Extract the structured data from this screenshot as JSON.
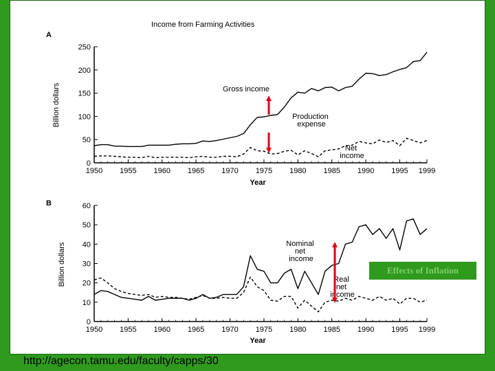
{
  "footer_url": "http://agecon.tamu.edu/faculty/capps/30",
  "callout": "Effects of Inflation",
  "colors": {
    "background": "#2f9a1e",
    "arrow": "#e0001a",
    "callout_bg": "#2f9a1e",
    "callout_text": "#7fd06c"
  },
  "chart_data": [
    {
      "panel": "A",
      "type": "line",
      "title": "Income from Farming Activities",
      "xlabel": "Year",
      "ylabel": "Billion dollars",
      "xlim": [
        1950,
        1999
      ],
      "ylim": [
        0,
        250
      ],
      "xticks": [
        "1950",
        "1955",
        "1960",
        "1965",
        "1970",
        "1975",
        "1980",
        "1985",
        "1990",
        "1995",
        "1999"
      ],
      "yticks": [
        "0",
        "50",
        "100",
        "150",
        "200",
        "250"
      ],
      "grid": false,
      "annotations": [
        "Gross income",
        "Production\nexpense",
        "Net\nincome"
      ],
      "series": [
        {
          "name": "Gross income",
          "style": "solid",
          "x": [
            1950,
            1951,
            1952,
            1953,
            1954,
            1955,
            1956,
            1957,
            1958,
            1959,
            1960,
            1961,
            1962,
            1963,
            1964,
            1965,
            1966,
            1967,
            1968,
            1969,
            1970,
            1971,
            1972,
            1973,
            1974,
            1975,
            1976,
            1977,
            1978,
            1979,
            1980,
            1981,
            1982,
            1983,
            1984,
            1985,
            1986,
            1987,
            1988,
            1989,
            1990,
            1991,
            1992,
            1993,
            1994,
            1995,
            1996,
            1997,
            1998,
            1999
          ],
          "y": [
            37,
            39,
            39,
            36,
            36,
            35,
            35,
            35,
            38,
            38,
            38,
            38,
            40,
            41,
            41,
            42,
            47,
            46,
            48,
            51,
            54,
            57,
            63,
            82,
            98,
            99,
            102,
            104,
            120,
            140,
            152,
            150,
            160,
            155,
            162,
            163,
            155,
            162,
            165,
            180,
            193,
            192,
            188,
            190,
            196,
            201,
            205,
            218,
            220,
            238
          ]
        },
        {
          "name": "Net income",
          "style": "dashed",
          "x": [
            1950,
            1951,
            1952,
            1953,
            1954,
            1955,
            1956,
            1957,
            1958,
            1959,
            1960,
            1961,
            1962,
            1963,
            1964,
            1965,
            1966,
            1967,
            1968,
            1969,
            1970,
            1971,
            1972,
            1973,
            1974,
            1975,
            1976,
            1977,
            1978,
            1979,
            1980,
            1981,
            1982,
            1983,
            1984,
            1985,
            1986,
            1987,
            1988,
            1989,
            1990,
            1991,
            1992,
            1993,
            1994,
            1995,
            1996,
            1997,
            1998,
            1999
          ],
          "y": [
            14,
            15,
            15,
            14,
            13,
            12,
            12,
            11,
            14,
            11,
            12,
            12,
            12,
            12,
            11,
            13,
            14,
            12,
            12,
            14,
            14,
            13,
            19,
            33,
            26,
            25,
            19,
            20,
            25,
            27,
            17,
            26,
            20,
            13,
            26,
            28,
            30,
            37,
            38,
            46,
            43,
            41,
            49,
            44,
            48,
            37,
            53,
            48,
            43,
            48
          ]
        }
      ]
    },
    {
      "panel": "B",
      "type": "line",
      "xlabel": "Year",
      "ylabel": "Billion dollars",
      "xlim": [
        1950,
        1999
      ],
      "ylim": [
        0,
        60
      ],
      "xticks": [
        "1950",
        "1955",
        "1960",
        "1965",
        "1970",
        "1975",
        "1980",
        "1985",
        "1990",
        "1995",
        "1999"
      ],
      "yticks": [
        "0",
        "10",
        "20",
        "30",
        "40",
        "50",
        "60"
      ],
      "grid": false,
      "annotations": [
        "Nominal\nnet\nincome",
        "Real\nnet\nincome"
      ],
      "series": [
        {
          "name": "Nominal net income",
          "style": "solid",
          "x": [
            1950,
            1951,
            1952,
            1953,
            1954,
            1955,
            1956,
            1957,
            1958,
            1959,
            1960,
            1961,
            1962,
            1963,
            1964,
            1965,
            1966,
            1967,
            1968,
            1969,
            1970,
            1971,
            1972,
            1973,
            1974,
            1975,
            1976,
            1977,
            1978,
            1979,
            1980,
            1981,
            1982,
            1983,
            1984,
            1985,
            1986,
            1987,
            1988,
            1989,
            1990,
            1991,
            1992,
            1993,
            1994,
            1995,
            1996,
            1997,
            1998,
            1999
          ],
          "y": [
            14,
            16,
            15.5,
            14,
            12.5,
            12,
            11.5,
            11,
            13,
            11,
            11.5,
            12,
            12,
            12,
            11,
            12,
            14,
            12,
            12.5,
            14,
            14,
            14,
            18,
            34,
            27,
            26,
            20,
            20,
            25,
            27,
            17,
            26,
            20,
            14,
            26,
            29,
            30,
            40,
            41,
            49,
            50,
            45,
            48,
            43,
            48,
            37,
            52,
            53,
            45,
            48
          ]
        },
        {
          "name": "Real net income",
          "style": "dashed",
          "x": [
            1950,
            1951,
            1952,
            1953,
            1954,
            1955,
            1956,
            1957,
            1958,
            1959,
            1960,
            1961,
            1962,
            1963,
            1964,
            1965,
            1966,
            1967,
            1968,
            1969,
            1970,
            1971,
            1972,
            1973,
            1974,
            1975,
            1976,
            1977,
            1978,
            1979,
            1980,
            1981,
            1982,
            1983,
            1984,
            1985,
            1986,
            1987,
            1988,
            1989,
            1990,
            1991,
            1992,
            1993,
            1994,
            1995,
            1996,
            1997,
            1998,
            1999
          ],
          "y": [
            21.5,
            22.5,
            20,
            17,
            15.5,
            14.5,
            14,
            13.5,
            14,
            12.5,
            13,
            12.5,
            12.5,
            12,
            11.5,
            12.5,
            13.5,
            12,
            12,
            12.5,
            12,
            12,
            15,
            23,
            18,
            16,
            11,
            10.5,
            13,
            13,
            7,
            11,
            8,
            5,
            10,
            11,
            10.5,
            12,
            11,
            13,
            12,
            11,
            13,
            11,
            12,
            9,
            12,
            12,
            10,
            11
          ]
        }
      ]
    }
  ]
}
